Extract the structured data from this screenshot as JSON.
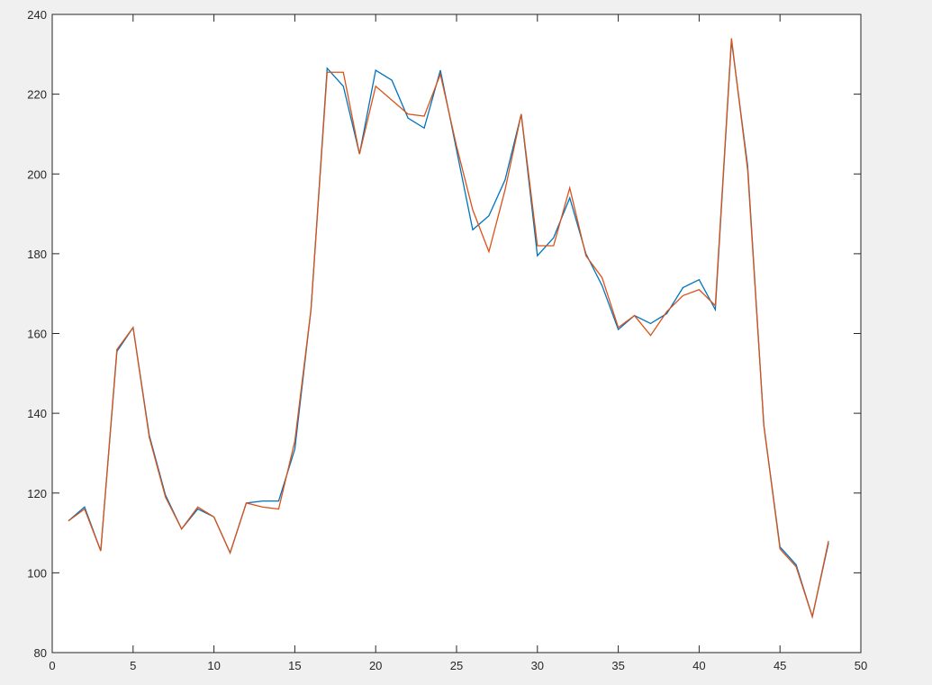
{
  "chart_data": {
    "type": "line",
    "title": "",
    "xlabel": "",
    "ylabel": "",
    "xlim": [
      0,
      50
    ],
    "ylim": [
      80,
      240
    ],
    "xticks": [
      0,
      5,
      10,
      15,
      20,
      25,
      30,
      35,
      40,
      45,
      50
    ],
    "yticks": [
      80,
      100,
      120,
      140,
      160,
      180,
      200,
      220,
      240
    ],
    "grid": false,
    "x": [
      1,
      2,
      3,
      4,
      5,
      6,
      7,
      8,
      9,
      10,
      11,
      12,
      13,
      14,
      15,
      16,
      17,
      18,
      19,
      20,
      21,
      22,
      23,
      24,
      25,
      26,
      27,
      28,
      29,
      30,
      31,
      32,
      33,
      34,
      35,
      36,
      37,
      38,
      39,
      40,
      41,
      42,
      43,
      44,
      45,
      46,
      47,
      48
    ],
    "series": [
      {
        "color": "#0072BD",
        "values": [
          113,
          116.5,
          105.5,
          155.5,
          161.5,
          134.5,
          119.5,
          111,
          116,
          114,
          105,
          117.5,
          118,
          118,
          131,
          166,
          226.5,
          222,
          205,
          226,
          223.5,
          214,
          211.5,
          226,
          206,
          186,
          189.5,
          198.5,
          215,
          179.5,
          184,
          194,
          180,
          172,
          161,
          164.5,
          162.5,
          165,
          171.5,
          173.5,
          166,
          233.5,
          202,
          137,
          106.5,
          102,
          89,
          107.5
        ]
      },
      {
        "color": "#D95319",
        "values": [
          113,
          116,
          105.5,
          156,
          161.5,
          134,
          119,
          111,
          116.5,
          114,
          105,
          117.5,
          116.5,
          116,
          133,
          166,
          225.5,
          225.5,
          205,
          222,
          218.5,
          215,
          214.5,
          225,
          207,
          191,
          180.5,
          196,
          215,
          182,
          182,
          196.5,
          179.5,
          174,
          161.5,
          164.5,
          159.5,
          165.5,
          169.5,
          171,
          167,
          234,
          201,
          137,
          106,
          101.5,
          89,
          108
        ]
      }
    ]
  }
}
